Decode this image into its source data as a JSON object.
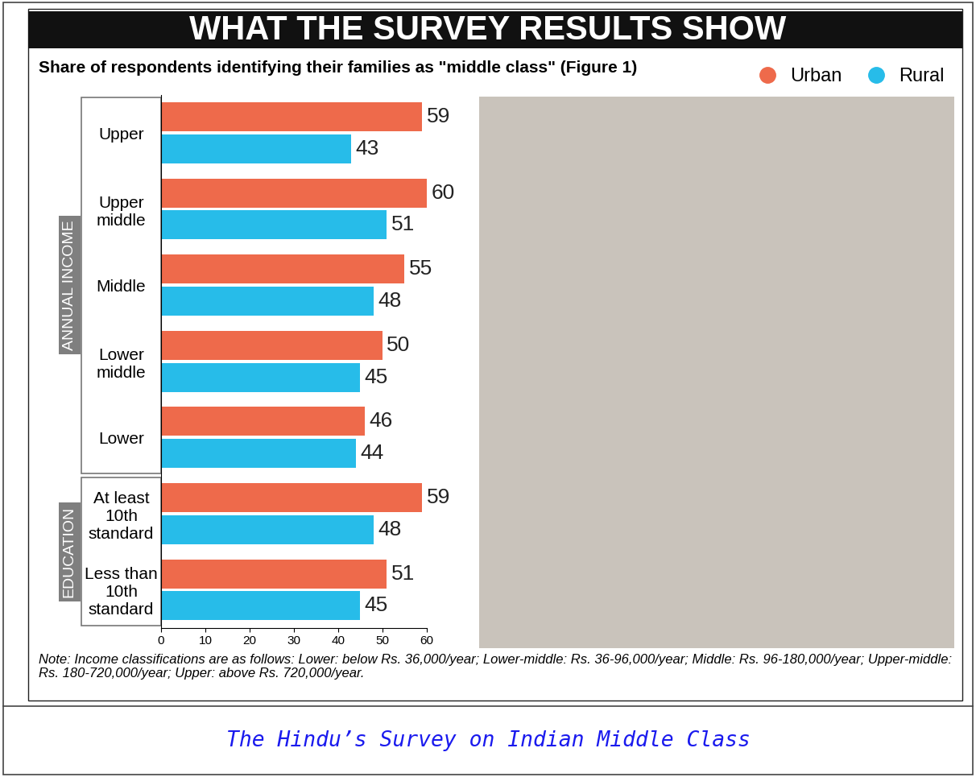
{
  "chart_data": {
    "type": "bar",
    "orientation": "horizontal",
    "title": "WHAT THE SURVEY RESULTS SHOW",
    "subtitle": "Share of respondents identifying their families as \"middle class\" (Figure 1)",
    "categories": [
      "Upper",
      "Upper middle",
      "Middle",
      "Lower middle",
      "Lower",
      "At least 10th standard",
      "Less than 10th standard"
    ],
    "category_groups": [
      "ANNUAL INCOME",
      "ANNUAL INCOME",
      "ANNUAL INCOME",
      "ANNUAL INCOME",
      "ANNUAL INCOME",
      "EDUCATION",
      "EDUCATION"
    ],
    "series": [
      {
        "name": "Urban",
        "color": "#ee6a4b",
        "values": [
          59,
          60,
          55,
          50,
          46,
          59,
          51
        ]
      },
      {
        "name": "Rural",
        "color": "#27bce9",
        "values": [
          43,
          51,
          48,
          45,
          44,
          48,
          45
        ]
      }
    ],
    "xlim": [
      0,
      60
    ],
    "xticks": [
      0,
      10,
      20,
      30,
      40,
      50,
      60
    ],
    "data_labels": true,
    "legend": "upper right",
    "grid": false,
    "note": "Note: Income classifications are as follows: Lower: below Rs. 36,000/year; Lower-middle: Rs. 36-96,000/year; Middle: Rs. 96-180,000/year; Upper-middle: Rs. 180-720,000/year; Upper: above Rs. 720,000/year.",
    "caption": "The Hindu’s Survey on Indian Middle Class"
  }
}
